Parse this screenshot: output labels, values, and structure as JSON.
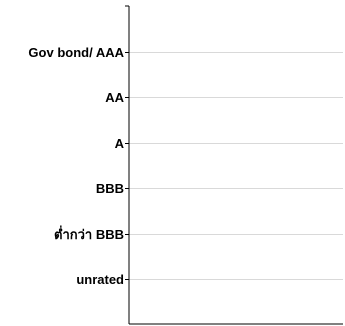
{
  "chart_data": {
    "type": "bar",
    "orientation": "horizontal",
    "categories": [
      "Gov bond/ AAA",
      "AA",
      "A",
      "BBB",
      "ต่ำกว่า BBB",
      "unrated"
    ],
    "series": [
      {
        "values": [
          null,
          null,
          null,
          null,
          null,
          null
        ]
      }
    ],
    "title": "",
    "xlabel": "",
    "ylabel": "",
    "grid": true,
    "legend": "none",
    "colors": {
      "axis": "#000000",
      "grid": "#d9d9d9",
      "label": "#000000"
    }
  }
}
